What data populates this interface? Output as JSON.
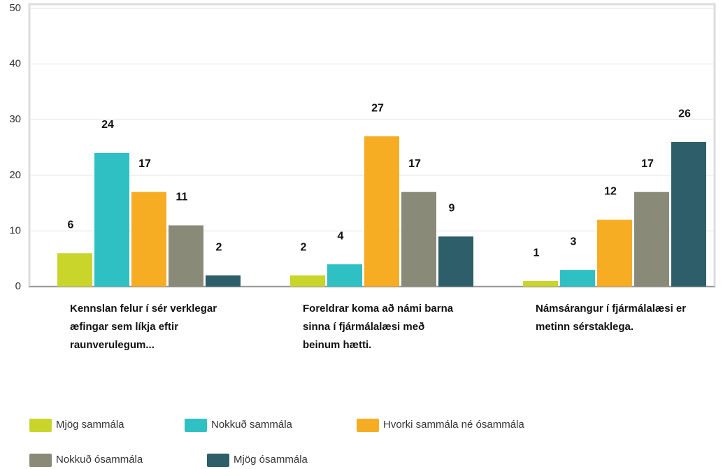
{
  "chart_data": {
    "type": "bar",
    "categories": [
      "Kennslan felur í sér verklegar æfingar sem líkja eftir raunverulegum...",
      "Foreldrar koma að námi barna sinna í fjármálalæsi með beinum hætti.",
      "Námsárangur í fjármálalæsi er metinn sérstaklega."
    ],
    "series": [
      {
        "name": "Mjög sammála",
        "color": "#c9d52b",
        "values": [
          6,
          2,
          1
        ]
      },
      {
        "name": "Nokkuð sammála",
        "color": "#2fc0c4",
        "values": [
          24,
          4,
          3
        ]
      },
      {
        "name": "Hvorki sammála né ósammála",
        "color": "#f6ad23",
        "values": [
          17,
          27,
          12
        ]
      },
      {
        "name": "Nokkuð ósammála",
        "color": "#8a8a78",
        "values": [
          11,
          17,
          17
        ]
      },
      {
        "name": "Mjög ósammála",
        "color": "#2d5e69",
        "values": [
          2,
          9,
          26
        ]
      }
    ],
    "ylim": [
      0,
      50
    ],
    "yticks": [
      0,
      10,
      20,
      30,
      40,
      50
    ],
    "grid": true
  }
}
